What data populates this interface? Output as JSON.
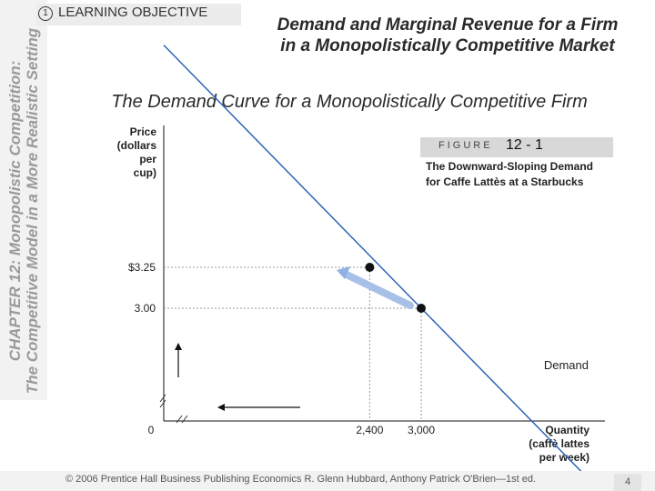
{
  "sidebar": {
    "line1": "CHAPTER 12: Monopolistic Competition:",
    "line2": "The Competitive Model in a More Realistic Setting"
  },
  "learning_objective": {
    "number": "1",
    "label": "LEARNING OBJECTIVE"
  },
  "slide_title": {
    "line1": "Demand and Marginal Revenue for a Firm",
    "line2": "in a Monopolistically Competitive Market"
  },
  "subtitle": "The Demand Curve for a Monopolistically Competitive Firm",
  "figure": {
    "label": "FIGURE",
    "number": "12 - 1",
    "caption_line1": "The Downward-Sloping Demand",
    "caption_line2": "for Caffe Lattès at a Starbucks"
  },
  "chart_data": {
    "type": "line",
    "ylabel": [
      "Price",
      "(dollars",
      "per",
      "cup)"
    ],
    "xlabel": [
      "Quantity",
      "(caffè lattes",
      "per week)"
    ],
    "y_ticks": [
      {
        "value": 3.25,
        "label": "$3.25"
      },
      {
        "value": 3.0,
        "label": "3.00"
      }
    ],
    "x_ticks": [
      {
        "value": 0,
        "label": "0"
      },
      {
        "value": 2400,
        "label": "2,400"
      },
      {
        "value": 3000,
        "label": "3,000"
      }
    ],
    "series": [
      {
        "name": "Demand",
        "x": [
          0,
          3000,
          5000
        ],
        "y": [
          4.6075,
          3.0,
          1.93
        ]
      }
    ],
    "points": [
      {
        "x": 2400,
        "y": 3.25
      },
      {
        "x": 3000,
        "y": 3.0
      }
    ],
    "curve_label": "Demand"
  },
  "footer": {
    "text": "© 2006 Prentice Hall Business Publishing   Economics  R. Glenn Hubbard, Anthony Patrick O'Brien—1st ed.",
    "page": "4"
  }
}
